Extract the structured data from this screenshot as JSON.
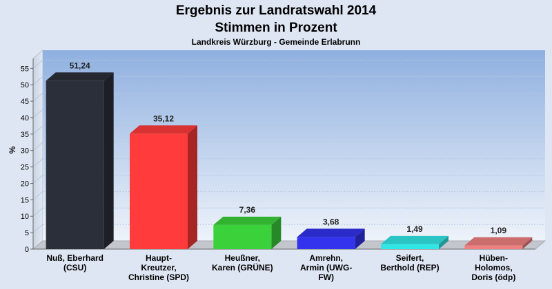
{
  "chart_data": {
    "type": "bar",
    "title_line1": "Ergebnis zur Landratswahl 2014",
    "title_line2": "Stimmen in Prozent",
    "subtitle": "Landkreis Würzburg - Gemeinde Erlabrunn",
    "ylabel": "%",
    "ylim": [
      0,
      58
    ],
    "yticks": [
      0,
      5,
      10,
      15,
      20,
      25,
      30,
      35,
      40,
      45,
      50,
      55
    ],
    "grid": true,
    "categories": [
      [
        "Nuß, Eberhard",
        "(CSU)"
      ],
      [
        "Haupt-",
        "Kreutzer,",
        "Christine (SPD)"
      ],
      [
        "Heußner,",
        "Karen (GRÜNE)"
      ],
      [
        "Amrehn,",
        "Armin (UWG-",
        "FW)"
      ],
      [
        "Seifert,",
        "Berthold (REP)"
      ],
      [
        "Hüben-",
        "Holomos,",
        "Doris (ödp)"
      ]
    ],
    "values": [
      51.24,
      35.12,
      7.36,
      3.68,
      1.49,
      1.09
    ],
    "value_labels": [
      "51,24",
      "35,12",
      "7,36",
      "3,68",
      "1,49",
      "1,09"
    ],
    "colors": [
      "#2b2f3a",
      "#ff3b3b",
      "#3ad13a",
      "#3333ee",
      "#33e6e6",
      "#f08080"
    ]
  }
}
